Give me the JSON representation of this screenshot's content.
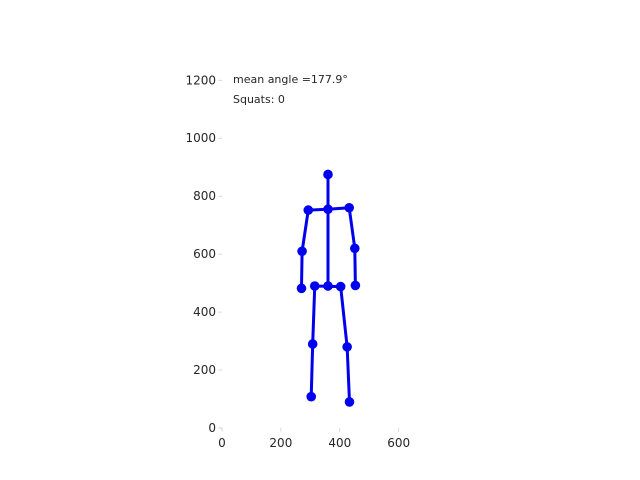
{
  "chart_data": {
    "type": "scatter",
    "title": "",
    "xlabel": "",
    "ylabel": "",
    "xlim": [
      0,
      720
    ],
    "ylim": [
      0,
      1270
    ],
    "grid": false,
    "x_ticks": [
      0,
      200,
      400,
      600
    ],
    "y_ticks": [
      0,
      200,
      400,
      600,
      800,
      1000,
      1200
    ],
    "annotations": [
      "mean angle =177.9°",
      "Squats: 0"
    ],
    "color": "#0000ee",
    "joints": [
      {
        "name": "head",
        "x": 360,
        "y": 875
      },
      {
        "name": "neck",
        "x": 360,
        "y": 755
      },
      {
        "name": "right_shoulder",
        "x": 293,
        "y": 752
      },
      {
        "name": "left_shoulder",
        "x": 432,
        "y": 760
      },
      {
        "name": "right_elbow",
        "x": 272,
        "y": 610
      },
      {
        "name": "left_elbow",
        "x": 451,
        "y": 620
      },
      {
        "name": "right_wrist",
        "x": 270,
        "y": 482
      },
      {
        "name": "left_wrist",
        "x": 453,
        "y": 492
      },
      {
        "name": "mid_hip",
        "x": 360,
        "y": 490
      },
      {
        "name": "right_hip",
        "x": 315,
        "y": 490
      },
      {
        "name": "left_hip",
        "x": 403,
        "y": 488
      },
      {
        "name": "right_knee",
        "x": 308,
        "y": 290
      },
      {
        "name": "left_knee",
        "x": 425,
        "y": 280
      },
      {
        "name": "right_ankle",
        "x": 303,
        "y": 108
      },
      {
        "name": "left_ankle",
        "x": 433,
        "y": 90
      }
    ],
    "bones": [
      [
        "head",
        "neck"
      ],
      [
        "neck",
        "right_shoulder"
      ],
      [
        "neck",
        "left_shoulder"
      ],
      [
        "right_shoulder",
        "right_elbow"
      ],
      [
        "right_elbow",
        "right_wrist"
      ],
      [
        "left_shoulder",
        "left_elbow"
      ],
      [
        "left_elbow",
        "left_wrist"
      ],
      [
        "neck",
        "mid_hip"
      ],
      [
        "right_hip",
        "left_hip"
      ],
      [
        "right_hip",
        "right_knee"
      ],
      [
        "right_knee",
        "right_ankle"
      ],
      [
        "left_hip",
        "left_knee"
      ],
      [
        "left_knee",
        "left_ankle"
      ]
    ]
  }
}
